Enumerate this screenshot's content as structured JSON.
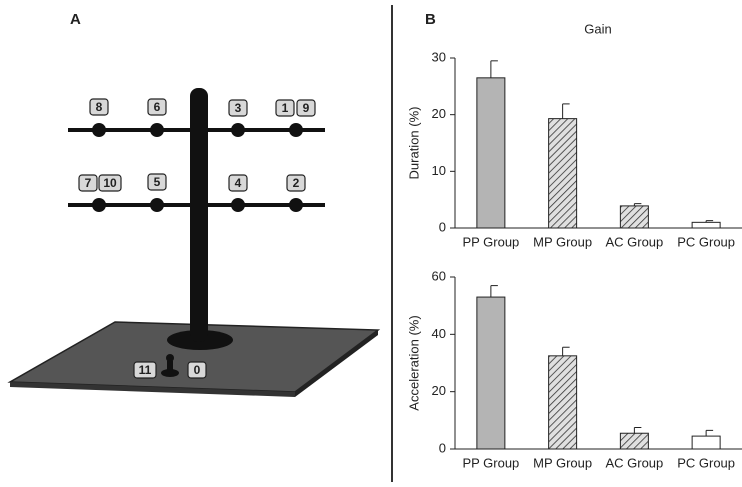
{
  "panel_a": {
    "label": "A",
    "nodes": [
      "8",
      "6",
      "3",
      "1",
      "9",
      "7",
      "10",
      "5",
      "4",
      "2",
      "11",
      "0"
    ]
  },
  "panel_b_label": "B",
  "chart_data": [
    {
      "type": "bar",
      "title": "Gain",
      "y_label": "Duration (%)",
      "categories": [
        "PP Group",
        "MP Group",
        "AC Group",
        "PC Group"
      ],
      "values": [
        26.5,
        19.3,
        3.9,
        1.0
      ],
      "errors": [
        3.0,
        2.6,
        0.4,
        0.3
      ],
      "colors": [
        "#b4b4b4",
        "#d0d0d0",
        "#d0d0d0",
        "#ffffff"
      ],
      "hatch": [
        false,
        true,
        true,
        false
      ],
      "ylim": [
        0,
        30
      ],
      "yticks": [
        0,
        10,
        20,
        30
      ]
    },
    {
      "type": "bar",
      "y_label": "Acceleration (%)",
      "categories": [
        "PP Group",
        "MP Group",
        "AC Group",
        "PC Group"
      ],
      "values": [
        53,
        32.5,
        5.5,
        4.5
      ],
      "errors": [
        4,
        3,
        2,
        2
      ],
      "colors": [
        "#b4b4b4",
        "#d0d0d0",
        "#d0d0d0",
        "#ffffff"
      ],
      "hatch": [
        false,
        true,
        true,
        false
      ],
      "ylim": [
        0,
        60
      ],
      "yticks": [
        0,
        20,
        40,
        60
      ]
    }
  ]
}
